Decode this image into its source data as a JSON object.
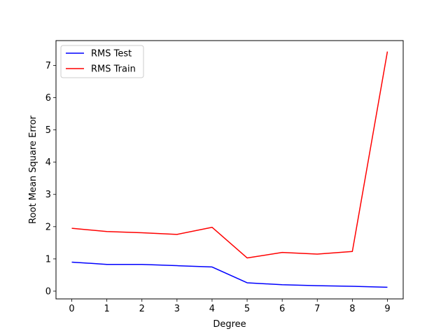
{
  "chart_data": {
    "type": "line",
    "title": "",
    "xlabel": "Degree",
    "ylabel": "Root Mean Square Error",
    "x": [
      0,
      1,
      2,
      3,
      4,
      5,
      6,
      7,
      8,
      9
    ],
    "xticks": [
      "0",
      "1",
      "2",
      "3",
      "4",
      "5",
      "6",
      "7",
      "8",
      "9"
    ],
    "yticks": [
      "0",
      "1",
      "2",
      "3",
      "4",
      "5",
      "6",
      "7"
    ],
    "xlim": [
      -0.45,
      9.45
    ],
    "ylim": [
      -0.24,
      7.77
    ],
    "grid": false,
    "legend_position": "upper-left",
    "series": [
      {
        "name": "RMS Test",
        "color": "#0000ff",
        "values": [
          0.9,
          0.83,
          0.83,
          0.79,
          0.75,
          0.26,
          0.2,
          0.17,
          0.15,
          0.12
        ]
      },
      {
        "name": "RMS Train",
        "color": "#ff0000",
        "values": [
          1.95,
          1.85,
          1.81,
          1.76,
          1.98,
          1.03,
          1.2,
          1.15,
          1.23,
          7.43
        ]
      }
    ]
  }
}
